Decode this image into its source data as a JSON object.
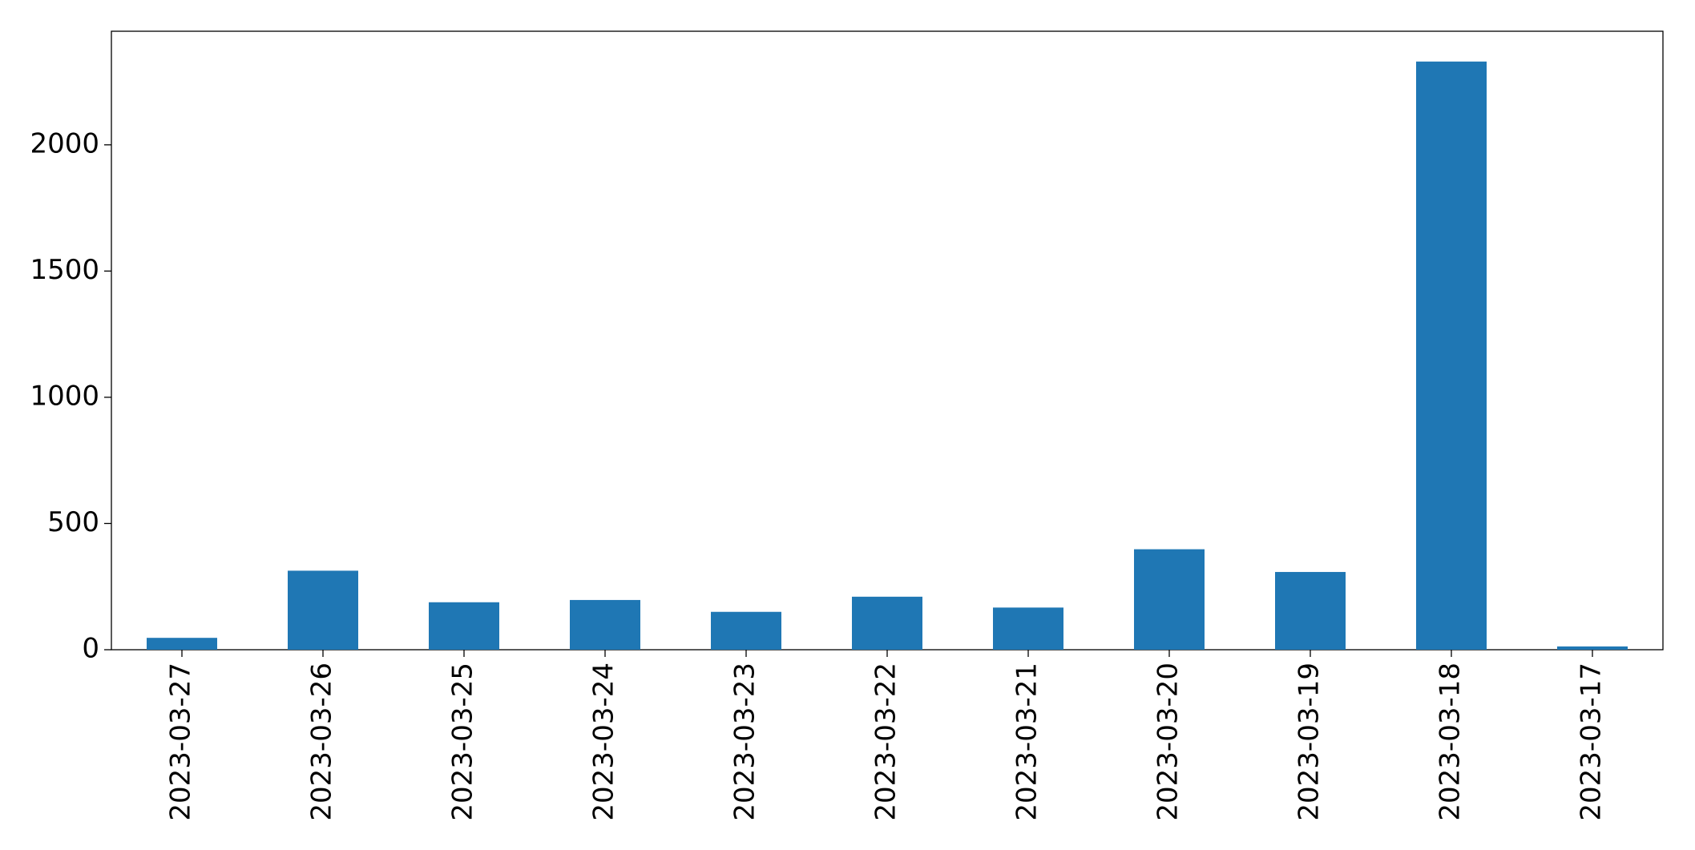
{
  "chart_data": {
    "type": "bar",
    "categories": [
      "2023-03-27",
      "2023-03-26",
      "2023-03-25",
      "2023-03-24",
      "2023-03-23",
      "2023-03-22",
      "2023-03-21",
      "2023-03-20",
      "2023-03-19",
      "2023-03-18",
      "2023-03-17"
    ],
    "values": [
      47,
      313,
      188,
      197,
      150,
      210,
      167,
      398,
      308,
      2330,
      13
    ],
    "color": "#1f77b4",
    "ylim": [
      0,
      2450
    ],
    "yticks": [
      0,
      500,
      1000,
      1500,
      2000
    ],
    "grid": false
  }
}
